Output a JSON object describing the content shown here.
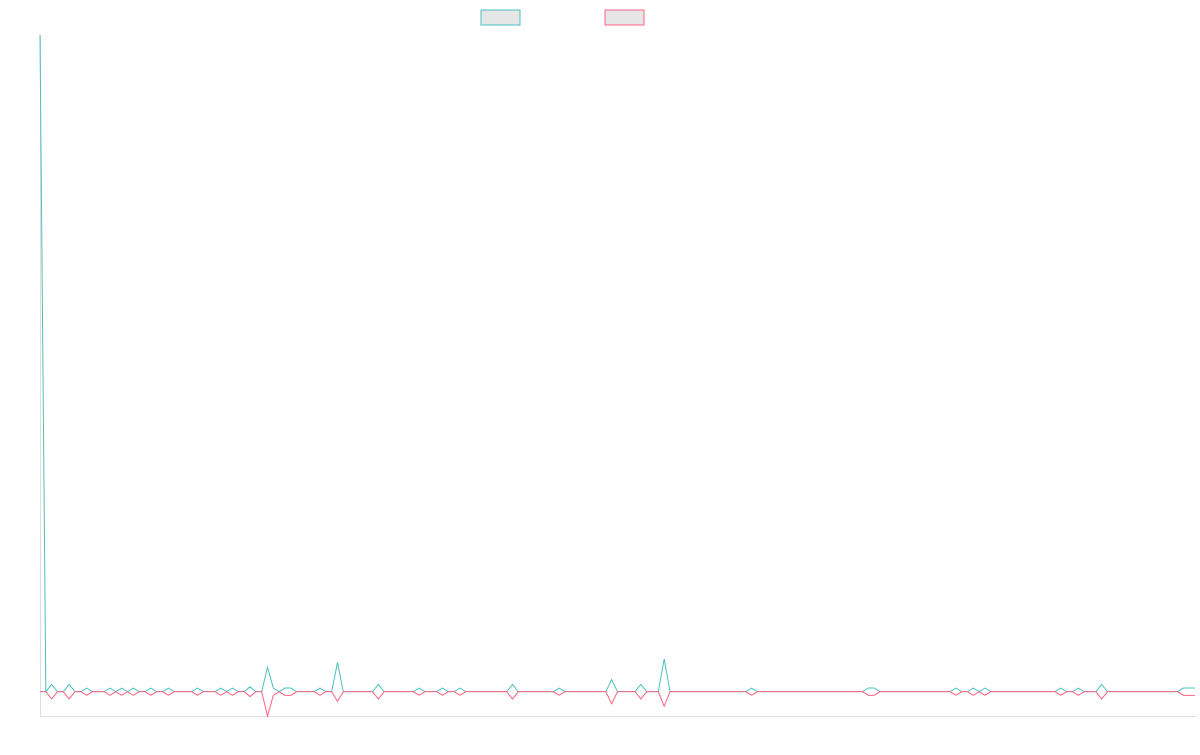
{
  "chart_data": {
    "type": "line",
    "legend": "top",
    "xlim": [
      0,
      198
    ],
    "ylim": [
      -1,
      27
    ],
    "x": [
      0,
      1,
      2,
      3,
      4,
      5,
      6,
      7,
      8,
      9,
      11,
      12,
      13,
      14,
      15,
      16,
      17,
      18,
      19,
      20,
      21,
      22,
      23,
      26,
      27,
      28,
      30,
      31,
      32,
      33,
      34,
      35,
      36,
      37,
      38,
      39,
      40,
      41,
      42,
      43,
      44,
      47,
      48,
      49,
      50,
      51,
      52,
      57,
      58,
      59,
      64,
      65,
      66,
      68,
      69,
      70,
      71,
      72,
      73,
      80,
      81,
      82,
      88,
      89,
      90,
      97,
      98,
      99,
      102,
      103,
      104,
      106,
      107,
      108,
      121,
      122,
      123,
      141,
      142,
      143,
      144,
      156,
      157,
      158,
      159,
      160,
      161,
      162,
      163,
      174,
      175,
      176,
      177,
      178,
      179,
      181,
      182,
      183,
      195,
      196,
      198
    ],
    "series": [
      {
        "color": "#4bc0c0",
        "values": [
          27,
          0,
          0.3,
          0,
          0,
          0.3,
          0,
          0,
          0.15,
          0,
          0,
          0.15,
          0,
          0.15,
          0,
          0.15,
          0,
          0,
          0.15,
          0,
          0,
          0.15,
          0,
          0,
          0.15,
          0,
          0,
          0.15,
          0,
          0.15,
          0,
          0,
          0.2,
          0,
          0,
          1,
          0.15,
          0,
          0.15,
          0.15,
          0,
          0,
          0.15,
          0,
          0,
          1.2,
          0,
          0,
          0.3,
          0,
          0,
          0.15,
          0,
          0,
          0.15,
          0,
          0,
          0.15,
          0,
          0,
          0.3,
          0,
          0,
          0.15,
          0,
          0,
          0.5,
          0,
          0,
          0.3,
          0,
          0,
          1.35,
          0,
          0,
          0.15,
          0,
          0,
          0.15,
          0.15,
          0,
          0,
          0.15,
          0,
          0,
          0.15,
          0,
          0.15,
          0,
          0,
          0.15,
          0,
          0,
          0.15,
          0,
          0,
          0.3,
          0,
          0,
          0.15,
          0.15
        ]
      },
      {
        "color": "#ff6384",
        "values": [
          0,
          0,
          -0.3,
          0,
          0,
          -0.3,
          0,
          0,
          -0.15,
          0,
          0,
          -0.15,
          0,
          -0.15,
          0,
          -0.15,
          0,
          0,
          -0.15,
          0,
          0,
          -0.15,
          0,
          0,
          -0.15,
          0,
          0,
          -0.15,
          0,
          -0.15,
          0,
          0,
          -0.2,
          0,
          0,
          -1,
          -0.15,
          0,
          -0.15,
          -0.15,
          0,
          0,
          -0.15,
          0,
          0,
          -0.4,
          0,
          0,
          -0.3,
          0,
          0,
          -0.15,
          0,
          0,
          -0.15,
          0,
          0,
          -0.15,
          0,
          0,
          -0.3,
          0,
          0,
          -0.15,
          0,
          0,
          -0.5,
          0,
          0,
          -0.3,
          0,
          0,
          -0.6,
          0,
          0,
          -0.15,
          0,
          0,
          -0.15,
          -0.15,
          0,
          0,
          -0.15,
          0,
          0,
          -0.15,
          0,
          -0.15,
          0,
          0,
          -0.15,
          0,
          0,
          -0.15,
          0,
          0,
          -0.3,
          0,
          0,
          -0.15,
          -0.15
        ]
      }
    ]
  }
}
